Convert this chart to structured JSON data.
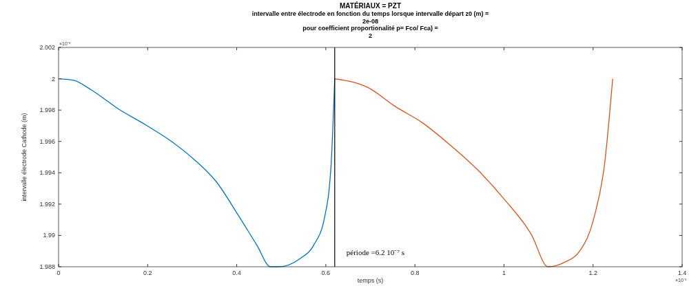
{
  "chart_data": {
    "type": "line",
    "title": "MATÉRIAUX = PZT",
    "subtitle": "intervalle entre électrode en fonction du temps lorsque intervalle départ z0 (m) =\n2e-08\npour coefficient proportionalité p= Fco/ Fca) =\n2",
    "xlabel": "temps (s)",
    "ylabel": "intervalle électrode Cathode (m)",
    "xlim": [
      0,
      1.4
    ],
    "xticks": [
      0,
      0.2,
      0.4,
      0.6,
      0.8,
      1,
      1.2,
      1.4
    ],
    "ylim": [
      1.988,
      2.002
    ],
    "yticks": [
      1.988,
      1.99,
      1.992,
      1.994,
      1.996,
      1.998,
      2,
      2.002
    ],
    "grid": false,
    "ref_lines": [
      {
        "axis": "x",
        "value": 0.62,
        "color": "#000000"
      }
    ],
    "annotations": [
      "période =6.2 10⁻⁷ s",
      "×10⁻⁸",
      "×10⁻⁶"
    ],
    "series": [
      {
        "color": "#0072bd",
        "x": [
          0,
          0.033,
          0.074,
          0.135,
          0.196,
          0.252,
          0.303,
          0.354,
          0.404,
          0.445,
          0.476,
          0.493,
          0.542,
          0.573,
          0.597,
          0.612,
          0.62
        ],
        "values": [
          2.0,
          1.99991,
          1.99928,
          1.99806,
          1.99705,
          1.99603,
          1.99488,
          1.99343,
          1.99126,
          1.98939,
          1.988,
          1.988,
          1.98852,
          1.98939,
          1.99112,
          1.99459,
          2.0
        ]
      },
      {
        "color": "#d95319",
        "x": [
          0.62,
          0.695,
          0.756,
          0.817,
          0.878,
          0.939,
          1.0,
          1.061,
          1.099,
          1.134,
          1.171,
          1.202,
          1.226,
          1.244
        ],
        "values": [
          2.0,
          1.99944,
          1.99823,
          1.99719,
          1.9958,
          1.99424,
          1.99233,
          1.99008,
          1.988,
          1.98826,
          1.98904,
          1.99112,
          1.99459,
          2.0
        ]
      }
    ]
  }
}
